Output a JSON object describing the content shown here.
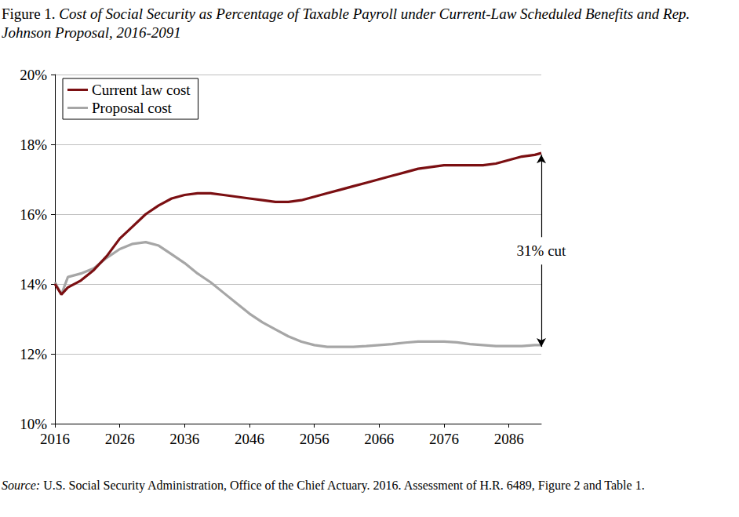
{
  "chart_data": {
    "type": "line",
    "title": "Figure 1. Cost of Social Security as Percentage of Taxable Payroll under Current-Law Scheduled Benefits and Rep. Johnson Proposal, 2016-2091",
    "source": "Source: U.S. Social Security Administration, Office of the Chief Actuary. 2016. Assessment of H.R. 6489, Figure 2 and Table 1.",
    "x": [
      2016,
      2017,
      2018,
      2020,
      2022,
      2024,
      2026,
      2028,
      2030,
      2032,
      2034,
      2036,
      2038,
      2040,
      2042,
      2044,
      2046,
      2048,
      2050,
      2052,
      2054,
      2056,
      2058,
      2060,
      2062,
      2064,
      2066,
      2068,
      2070,
      2072,
      2074,
      2076,
      2078,
      2080,
      2082,
      2084,
      2086,
      2088,
      2090,
      2091
    ],
    "series": [
      {
        "name": "Current law cost",
        "color": "#7b0f12",
        "values": [
          14.0,
          13.7,
          13.9,
          14.1,
          14.4,
          14.8,
          15.3,
          15.65,
          16.0,
          16.25,
          16.45,
          16.55,
          16.6,
          16.6,
          16.55,
          16.5,
          16.45,
          16.4,
          16.35,
          16.35,
          16.4,
          16.5,
          16.6,
          16.7,
          16.8,
          16.9,
          17.0,
          17.1,
          17.2,
          17.3,
          17.35,
          17.4,
          17.4,
          17.4,
          17.4,
          17.45,
          17.55,
          17.65,
          17.7,
          17.75
        ]
      },
      {
        "name": "Proposal cost",
        "color": "#a6a6a6",
        "values": [
          14.05,
          13.7,
          14.2,
          14.3,
          14.45,
          14.75,
          15.0,
          15.15,
          15.2,
          15.1,
          14.85,
          14.6,
          14.3,
          14.05,
          13.75,
          13.45,
          13.15,
          12.9,
          12.7,
          12.5,
          12.35,
          12.25,
          12.2,
          12.2,
          12.2,
          12.22,
          12.25,
          12.28,
          12.32,
          12.35,
          12.35,
          12.35,
          12.33,
          12.28,
          12.25,
          12.22,
          12.22,
          12.22,
          12.25,
          12.25
        ]
      }
    ],
    "xlim": [
      2016,
      2091
    ],
    "xticks": [
      2016,
      2026,
      2036,
      2046,
      2056,
      2066,
      2076,
      2086
    ],
    "ylim": [
      10,
      20
    ],
    "yticks": [
      {
        "value": 10,
        "label": "10%"
      },
      {
        "value": 12,
        "label": "12%"
      },
      {
        "value": 14,
        "label": "14%"
      },
      {
        "value": 16,
        "label": "16%"
      },
      {
        "value": 18,
        "label": "18%"
      },
      {
        "value": 20,
        "label": "20%"
      }
    ],
    "annotations": [
      {
        "text": "31% cut",
        "x": 2091,
        "y_top": 17.7,
        "y_bottom": 12.2
      }
    ],
    "grid": true,
    "legend": "upper left"
  }
}
